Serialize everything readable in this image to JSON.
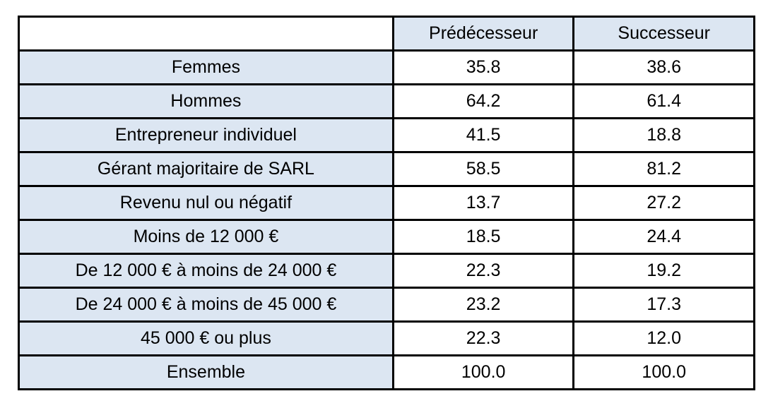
{
  "colors": {
    "header_fill": "#dce6f2",
    "label_fill": "#dce6f2",
    "value_fill": "#ffffff",
    "border": "#000000",
    "text": "#000000",
    "page_background": "#ffffff"
  },
  "chart_data": {
    "type": "table",
    "title": "",
    "columns": [
      "",
      "Prédécesseur",
      "Successeur"
    ],
    "rows": [
      [
        "Femmes",
        "35.8",
        "38.6"
      ],
      [
        "Hommes",
        "64.2",
        "61.4"
      ],
      [
        "Entrepreneur individuel",
        "41.5",
        "18.8"
      ],
      [
        "Gérant majoritaire de SARL",
        "58.5",
        "81.2"
      ],
      [
        "Revenu nul ou négatif",
        "13.7",
        "27.2"
      ],
      [
        "Moins de 12 000 €",
        "18.5",
        "24.4"
      ],
      [
        "De 12 000 € à moins de 24 000 €",
        "22.3",
        "19.2"
      ],
      [
        "De 24 000 € à moins de 45 000 €",
        "23.2",
        "17.3"
      ],
      [
        "45 000 € ou plus",
        "22.3",
        "12.0"
      ],
      [
        "Ensemble",
        "100.0",
        "100.0"
      ]
    ]
  }
}
